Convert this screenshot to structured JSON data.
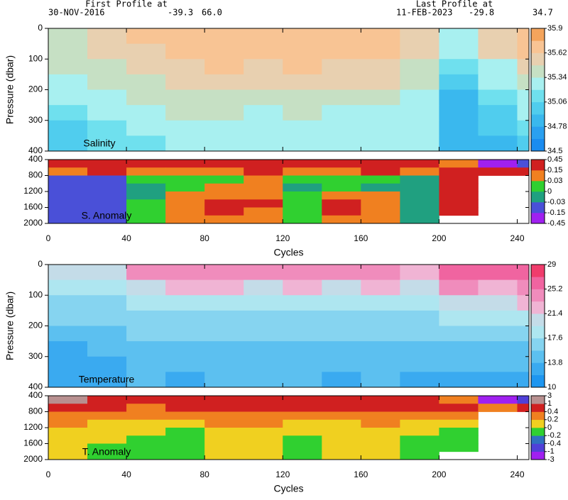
{
  "header": {
    "first_label": "First Profile at",
    "first_date": "30-NOV-2016",
    "first_lat": "-39.3",
    "first_lon": "66.0",
    "last_label": "Last Profile at",
    "last_date": "11-FEB-2023",
    "last_lat": "-29.8",
    "last_lon": "34.7"
  },
  "chart_data": [
    {
      "type": "heatmap",
      "label": "Salinity",
      "ylabel": "Pressure (dbar)",
      "xlim": [
        0,
        246
      ],
      "ylim": [
        0,
        400
      ],
      "xticks": [
        0,
        40,
        80,
        120,
        160,
        200,
        240
      ],
      "yticks": [
        0,
        100,
        200,
        300,
        400
      ],
      "x_edges": [
        0,
        20,
        40,
        60,
        80,
        100,
        120,
        140,
        160,
        180,
        200,
        220,
        240,
        246
      ],
      "y_edges": [
        0,
        50,
        100,
        150,
        200,
        250,
        300,
        350,
        400
      ],
      "values": [
        [
          35.4,
          35.5,
          35.65,
          35.7,
          35.7,
          35.7,
          35.72,
          35.7,
          35.7,
          35.5,
          35.3,
          35.6,
          35.7
        ],
        [
          35.4,
          35.5,
          35.6,
          35.7,
          35.7,
          35.7,
          35.7,
          35.68,
          35.7,
          35.5,
          35.2,
          35.5,
          35.7
        ],
        [
          35.35,
          35.4,
          35.5,
          35.6,
          35.65,
          35.6,
          35.65,
          35.6,
          35.6,
          35.4,
          35.1,
          35.3,
          35.5
        ],
        [
          35.3,
          35.35,
          35.4,
          35.5,
          35.55,
          35.5,
          35.55,
          35.5,
          35.5,
          35.35,
          35.0,
          35.2,
          35.4
        ],
        [
          35.2,
          35.3,
          35.35,
          35.4,
          35.45,
          35.4,
          35.45,
          35.4,
          35.4,
          35.3,
          34.9,
          35.1,
          35.3
        ],
        [
          35.1,
          35.2,
          35.3,
          35.35,
          35.35,
          35.3,
          35.35,
          35.3,
          35.3,
          35.3,
          34.9,
          35.0,
          35.2
        ],
        [
          35.05,
          35.15,
          35.2,
          35.3,
          35.3,
          35.25,
          35.3,
          35.25,
          35.25,
          35.25,
          34.8,
          34.95,
          35.1
        ],
        [
          35.0,
          35.1,
          35.15,
          35.2,
          35.25,
          35.2,
          35.2,
          35.2,
          35.2,
          35.2,
          34.8,
          34.9,
          35.05
        ]
      ],
      "colorbar": {
        "ticks": [
          34.5,
          34.78,
          35.06,
          35.34,
          35.62,
          35.9
        ],
        "colors": [
          "#1a8cf0",
          "#2aa0f0",
          "#3ab8ee",
          "#50cdee",
          "#6fe0ee",
          "#a8f0f0",
          "#c6e0c4",
          "#e8d0b0",
          "#f8c494",
          "#f4a45c"
        ]
      }
    },
    {
      "type": "heatmap",
      "label": "S. Anomaly",
      "xlabel": "Cycles",
      "xlim": [
        0,
        246
      ],
      "ylim": [
        400,
        2000
      ],
      "xticks": [
        0,
        40,
        80,
        120,
        160,
        200,
        240
      ],
      "yticks": [
        400,
        800,
        1200,
        1600,
        2000
      ],
      "x_edges": [
        0,
        20,
        40,
        60,
        80,
        100,
        120,
        140,
        160,
        180,
        200,
        220,
        240,
        246
      ],
      "y_edges": [
        400,
        600,
        800,
        1000,
        1200,
        1400,
        1600,
        1800,
        2000
      ],
      "values": [
        [
          0.2,
          0.35,
          0.15,
          0.2,
          0.25,
          0.3,
          0.2,
          0.2,
          0.3,
          0.2,
          0.1,
          -0.3,
          -0.05
        ],
        [
          0.05,
          0.15,
          0.05,
          0.05,
          0.1,
          0.2,
          0.05,
          0.1,
          0.15,
          0.1,
          0.2,
          0.15,
          0.2
        ],
        [
          -0.1,
          -0.05,
          0.0,
          0.02,
          0.02,
          0.05,
          0.0,
          0.01,
          0.02,
          -0.02,
          0.2,
          null,
          null
        ],
        [
          -0.15,
          -0.1,
          -0.02,
          0.0,
          0.03,
          0.05,
          -0.01,
          0.02,
          -0.02,
          -0.03,
          0.2,
          null,
          null
        ],
        [
          -0.15,
          -0.1,
          -0.02,
          0.03,
          0.1,
          0.1,
          0.0,
          0.1,
          0.05,
          -0.03,
          0.2,
          null,
          null
        ],
        [
          -0.15,
          -0.08,
          0.0,
          0.1,
          0.15,
          0.15,
          0.0,
          0.15,
          0.1,
          -0.02,
          0.2,
          null,
          null
        ],
        [
          -0.1,
          -0.05,
          0.0,
          0.1,
          0.15,
          0.1,
          0.0,
          0.15,
          0.08,
          -0.02,
          0.2,
          null,
          null
        ],
        [
          -0.1,
          -0.05,
          0.0,
          0.05,
          0.1,
          0.05,
          0.0,
          0.1,
          0.05,
          -0.02,
          null,
          null,
          null
        ]
      ],
      "colorbar": {
        "ticks": [
          -0.45,
          -0.15,
          -0.03,
          0,
          0.03,
          0.15,
          0.45
        ],
        "colors": [
          "#a020f0",
          "#4a50d8",
          "#20a080",
          "#30d030",
          "#f08020",
          "#d02020"
        ]
      }
    },
    {
      "type": "heatmap",
      "label": "Temperature",
      "ylabel": "Pressure (dbar)",
      "xlim": [
        0,
        246
      ],
      "ylim": [
        0,
        400
      ],
      "xticks": [
        0,
        40,
        80,
        120,
        160,
        200,
        240
      ],
      "yticks": [
        0,
        100,
        200,
        300,
        400
      ],
      "x_edges": [
        0,
        20,
        40,
        60,
        80,
        100,
        120,
        140,
        160,
        180,
        200,
        220,
        240,
        246
      ],
      "y_edges": [
        0,
        50,
        100,
        150,
        200,
        250,
        300,
        350,
        400
      ],
      "values": [
        [
          21,
          21,
          24,
          25,
          25,
          24,
          25,
          24,
          25,
          22,
          26,
          26,
          27
        ],
        [
          19,
          19,
          21,
          22,
          22,
          21,
          22,
          21,
          22,
          20,
          24,
          23,
          25
        ],
        [
          17,
          17,
          18,
          19,
          19,
          18,
          19,
          18,
          19,
          18,
          21,
          20,
          22
        ],
        [
          16,
          16,
          17,
          17,
          17,
          17,
          17,
          17,
          17,
          17,
          19,
          18,
          19
        ],
        [
          15,
          15,
          16,
          16,
          16,
          16,
          16,
          16,
          16,
          16,
          17,
          16,
          17
        ],
        [
          13.5,
          14,
          15,
          15,
          15,
          15,
          15,
          15,
          15,
          15,
          15.5,
          15,
          15.5
        ],
        [
          13,
          13.5,
          14.5,
          14,
          14.5,
          14.5,
          14.5,
          14,
          14.5,
          14,
          14.5,
          14,
          14.5
        ],
        [
          12.5,
          13,
          14,
          13.5,
          14,
          14,
          14,
          13.5,
          14,
          13.5,
          13.5,
          13,
          13.5
        ]
      ],
      "colorbar": {
        "ticks": [
          10,
          13.8,
          17.6,
          21.4,
          25.2,
          29
        ],
        "colors": [
          "#1e96f0",
          "#3aaaf0",
          "#5cc0f0",
          "#86d4f0",
          "#aee6f0",
          "#c4dce8",
          "#f0b4d4",
          "#f08cbc",
          "#f064a0",
          "#f03c6c"
        ]
      }
    },
    {
      "type": "heatmap",
      "label": "T. Anomaly",
      "xlabel": "Cycles",
      "xlim": [
        0,
        246
      ],
      "ylim": [
        400,
        2000
      ],
      "xticks": [
        0,
        40,
        80,
        120,
        160,
        200,
        240
      ],
      "yticks": [
        400,
        800,
        1200,
        1600,
        2000
      ],
      "x_edges": [
        0,
        20,
        40,
        60,
        80,
        100,
        120,
        140,
        160,
        180,
        200,
        220,
        240,
        246
      ],
      "y_edges": [
        400,
        600,
        800,
        1000,
        1200,
        1400,
        1600,
        1800,
        2000
      ],
      "values": [
        [
          1.5,
          0.6,
          0.4,
          0.5,
          0.8,
          0.6,
          0.7,
          0.5,
          0.8,
          0.6,
          0.3,
          -1.5,
          -0.6
        ],
        [
          0.6,
          0.5,
          0.3,
          0.4,
          0.5,
          0.5,
          0.4,
          0.4,
          0.5,
          0.4,
          0.5,
          0.3,
          0.4
        ],
        [
          0.3,
          0.3,
          0.25,
          0.3,
          0.35,
          0.3,
          0.25,
          0.3,
          0.3,
          0.2,
          0.2,
          null,
          null
        ],
        [
          0.2,
          0.15,
          0.1,
          0.1,
          0.2,
          0.2,
          0.1,
          0.15,
          0.2,
          0.1,
          0.0,
          null,
          null
        ],
        [
          0.1,
          0.1,
          0.0,
          -0.05,
          0.1,
          0.1,
          0.0,
          0.05,
          0.1,
          0.0,
          -0.1,
          null,
          null
        ],
        [
          0.05,
          0.0,
          -0.05,
          -0.05,
          0.0,
          0.05,
          -0.05,
          0.0,
          0.05,
          -0.05,
          -0.1,
          null,
          null
        ],
        [
          0.0,
          -0.05,
          -0.05,
          -0.05,
          0.0,
          0.0,
          -0.05,
          0.0,
          0.0,
          -0.05,
          -0.1,
          null,
          null
        ],
        [
          0.0,
          -0.05,
          -0.05,
          -0.05,
          0.0,
          0.0,
          -0.05,
          0.0,
          0.0,
          -0.05,
          null,
          null,
          null
        ]
      ],
      "colorbar": {
        "ticks": [
          -3,
          -1,
          -0.4,
          -0.2,
          0,
          0.2,
          0.4,
          1,
          3
        ],
        "colors": [
          "#a020f0",
          "#5040d8",
          "#3070c0",
          "#30d030",
          "#f0d020",
          "#f08020",
          "#d02020",
          "#b89090"
        ]
      }
    }
  ]
}
